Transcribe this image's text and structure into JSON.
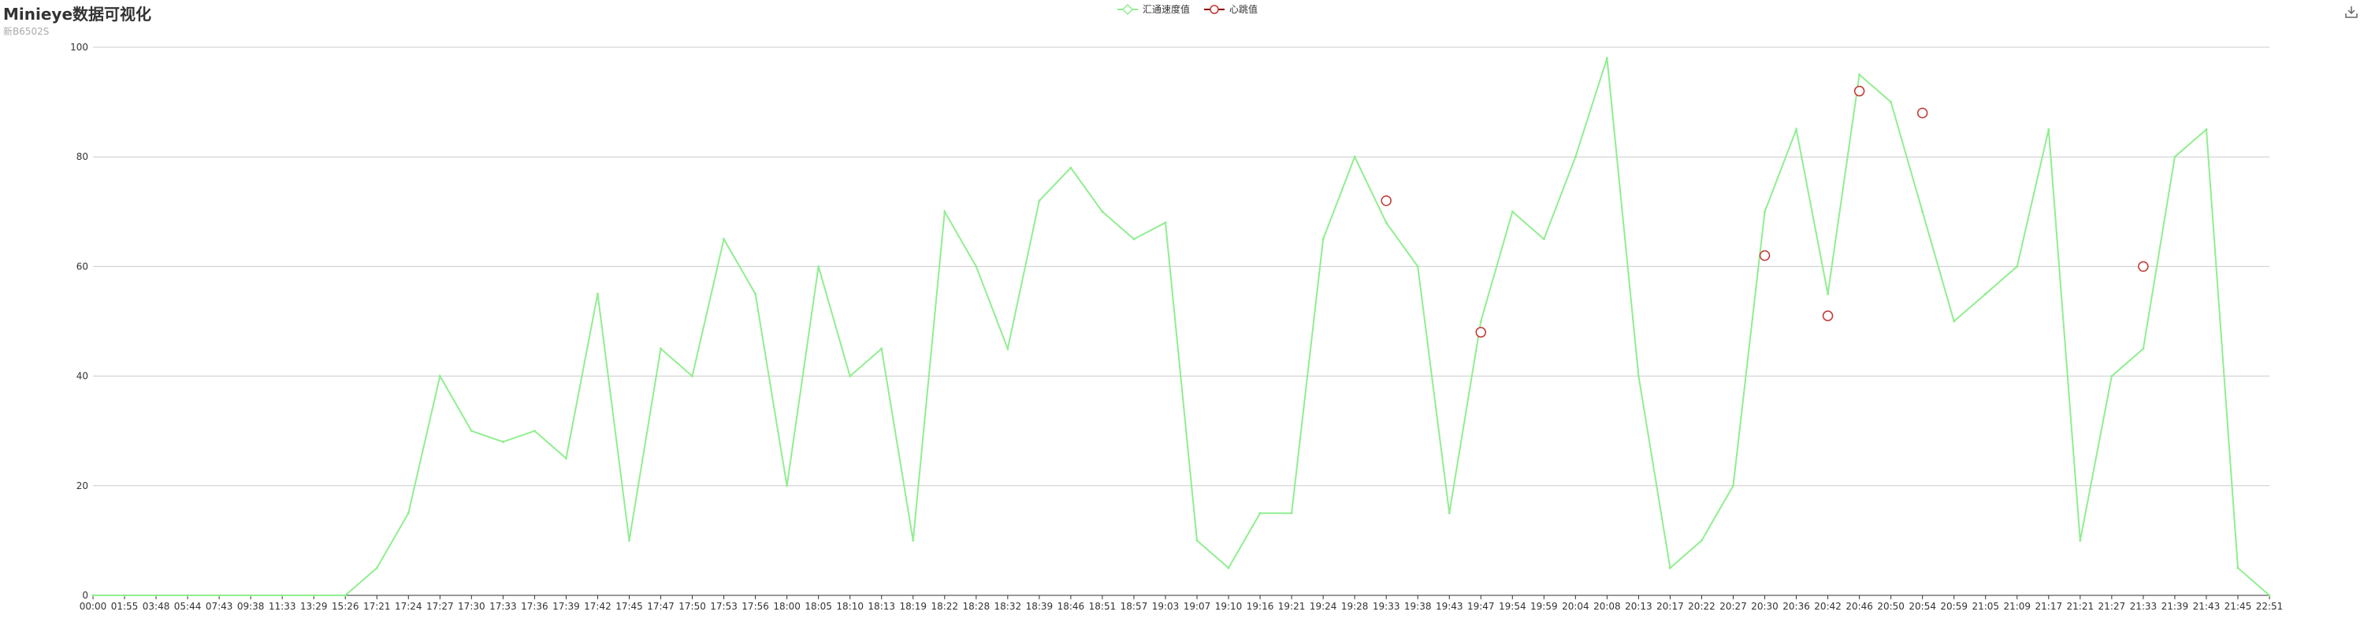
{
  "page": {
    "title": "Minieye数据可视化",
    "subtitle": "新B6502S"
  },
  "colors": {
    "speed": "#90ee90",
    "heartbeat": "#8b0000",
    "heartbeat_marker": "#c23531",
    "grid": "#cccccc",
    "axis": "#333333"
  },
  "icons": {
    "download": "download-icon"
  },
  "chart_data": {
    "type": "line",
    "title": "Minieye数据可视化",
    "subtitle": "新B6502S",
    "legend_position": "top-center",
    "legend": [
      "汇通速度值",
      "心跳值"
    ],
    "ylim": [
      0,
      100
    ],
    "yticks": [
      0,
      20,
      40,
      60,
      80,
      100
    ],
    "grid": true,
    "categories": [
      "00:00",
      "01:55",
      "03:48",
      "05:44",
      "07:43",
      "09:38",
      "11:33",
      "13:29",
      "15:26",
      "17:21",
      "17:24",
      "17:27",
      "17:30",
      "17:33",
      "17:36",
      "17:39",
      "17:42",
      "17:45",
      "17:47",
      "17:50",
      "17:53",
      "17:56",
      "18:00",
      "18:05",
      "18:10",
      "18:13",
      "18:19",
      "18:22",
      "18:28",
      "18:32",
      "18:39",
      "18:46",
      "18:51",
      "18:57",
      "19:03",
      "19:07",
      "19:10",
      "19:16",
      "19:21",
      "19:24",
      "19:28",
      "19:33",
      "19:38",
      "19:43",
      "19:47",
      "19:54",
      "19:59",
      "20:04",
      "20:08",
      "20:13",
      "20:17",
      "20:22",
      "20:27",
      "20:30",
      "20:36",
      "20:42",
      "20:46",
      "20:50",
      "20:54",
      "20:59",
      "21:05",
      "21:09",
      "21:17",
      "21:21",
      "21:27",
      "21:33",
      "21:39",
      "21:43",
      "21:45",
      "22:51"
    ],
    "series": [
      {
        "name": "汇通速度值",
        "type": "line",
        "values": [
          0,
          0,
          0,
          0,
          0,
          0,
          0,
          0,
          0,
          5,
          15,
          40,
          30,
          28,
          30,
          25,
          55,
          10,
          45,
          40,
          65,
          55,
          20,
          60,
          40,
          45,
          10,
          70,
          60,
          45,
          72,
          78,
          70,
          65,
          68,
          10,
          5,
          15,
          15,
          65,
          80,
          68,
          60,
          15,
          50,
          70,
          65,
          80,
          98,
          40,
          5,
          10,
          20,
          70,
          85,
          55,
          95,
          90,
          70,
          50,
          55,
          60,
          85,
          10,
          40,
          45,
          80,
          85,
          5,
          0
        ]
      },
      {
        "name": "心跳值",
        "type": "scatter",
        "points": [
          {
            "x": "19:33",
            "y": 72
          },
          {
            "x": "19:47",
            "y": 48
          },
          {
            "x": "20:30",
            "y": 62
          },
          {
            "x": "20:42",
            "y": 51
          },
          {
            "x": "20:46",
            "y": 92
          },
          {
            "x": "20:54",
            "y": 88
          },
          {
            "x": "21:33",
            "y": 60
          }
        ]
      }
    ]
  }
}
